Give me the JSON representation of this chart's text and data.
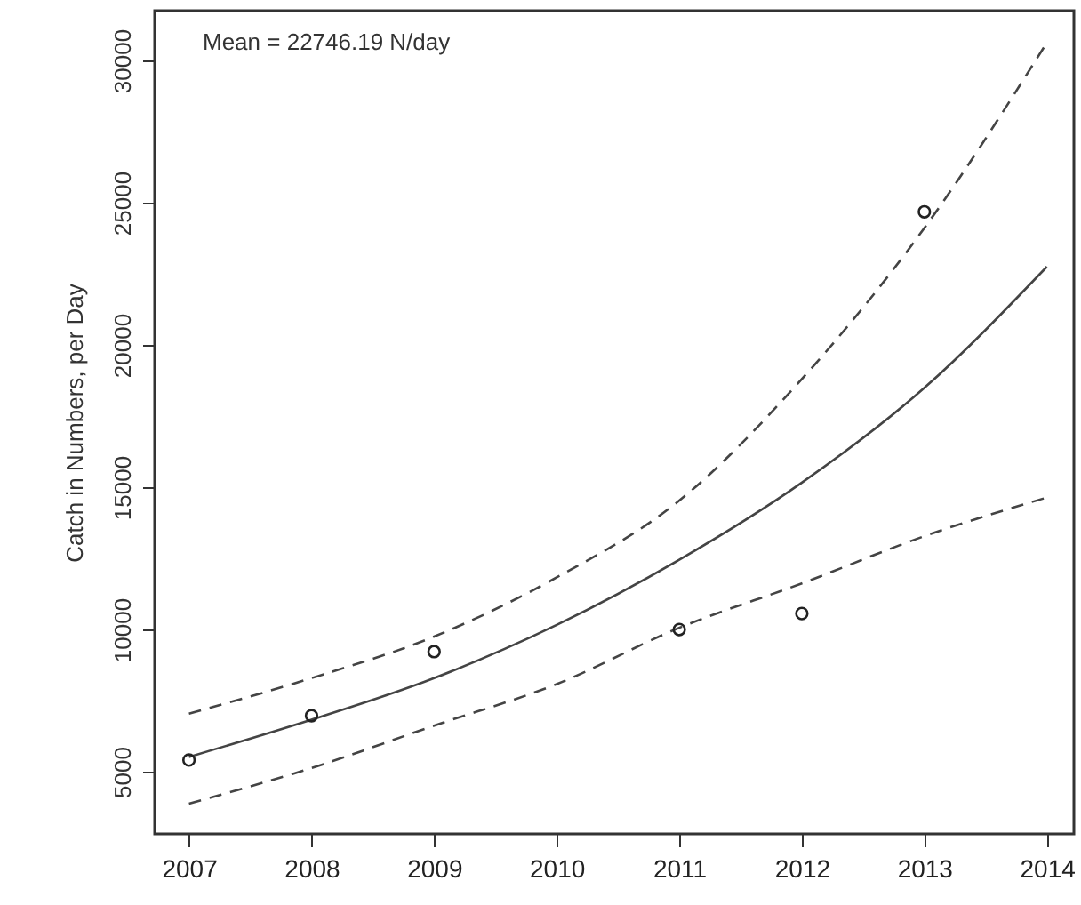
{
  "chart_data": {
    "type": "line",
    "ylabel": "Catch in Numbers, per Day",
    "annotations": [
      "Mean =  22746.19  N/day"
    ],
    "x": [
      2007,
      2008,
      2009,
      2010,
      2011,
      2012,
      2013,
      2014
    ],
    "xlim": [
      2006.72,
      2014.22
    ],
    "xticks": [
      2007,
      2008,
      2009,
      2010,
      2011,
      2012,
      2013,
      2014
    ],
    "ylim": [
      2814,
      31750
    ],
    "yticks": [
      5000,
      10000,
      15000,
      20000,
      25000,
      30000
    ],
    "grid": false,
    "series": [
      {
        "line_style": "solid",
        "color": "#444444",
        "values": [
          5520,
          6830,
          8290,
          10160,
          12450,
          15160,
          18490,
          22750
        ]
      },
      {
        "type": "line",
        "line_style": "dashed",
        "color": "#444444",
        "values": [
          7040,
          8290,
          9750,
          11830,
          14530,
          18800,
          24110,
          30630
        ]
      },
      {
        "type": "line",
        "line_style": "dashed",
        "color": "#444444",
        "values": [
          3880,
          5130,
          6620,
          8080,
          10060,
          11620,
          13280,
          14640
        ]
      },
      {
        "type": "scatter",
        "marker": "circle",
        "color": "#222222",
        "x": [
          2007,
          2008,
          2009,
          2011,
          2012,
          2013
        ],
        "values": [
          5410,
          6970,
          9220,
          10000,
          10560,
          24680
        ]
      }
    ]
  }
}
